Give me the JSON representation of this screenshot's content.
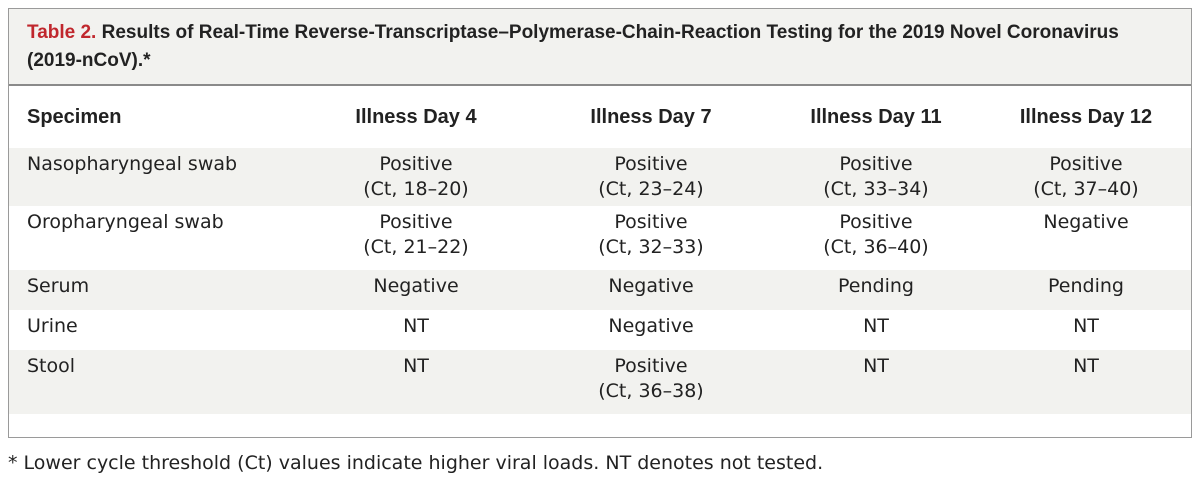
{
  "title": {
    "label": "Table 2.",
    "text": "Results of Real-Time Reverse-Transcriptase–Polymerase-Chain-Reaction Testing for the 2019 Novel Coronavirus (2019-nCoV).*"
  },
  "table": {
    "header": [
      "Specimen",
      "Illness Day 4",
      "Illness Day 7",
      "Illness Day 11",
      "Illness Day 12"
    ],
    "rows": [
      [
        "Nasopharyngeal swab",
        [
          "Positive",
          "(Ct, 18–20)"
        ],
        [
          "Positive",
          "(Ct, 23–24)"
        ],
        [
          "Positive",
          "(Ct, 33–34)"
        ],
        [
          "Positive",
          "(Ct, 37–40)"
        ]
      ],
      [
        "Oropharyngeal swab",
        [
          "Positive",
          "(Ct, 21–22)"
        ],
        [
          "Positive",
          "(Ct, 32–33)"
        ],
        [
          "Positive",
          "(Ct, 36–40)"
        ],
        [
          "Negative"
        ]
      ],
      [
        "Serum",
        [
          "Negative"
        ],
        [
          "Negative"
        ],
        [
          "Pending"
        ],
        [
          "Pending"
        ]
      ],
      [
        "Urine",
        [
          "NT"
        ],
        [
          "Negative"
        ],
        [
          "NT"
        ],
        [
          "NT"
        ]
      ],
      [
        "Stool",
        [
          "NT"
        ],
        [
          "Positive",
          "(Ct, 36–38)"
        ],
        [
          "NT"
        ],
        [
          "NT"
        ]
      ]
    ]
  },
  "footnote": "* Lower cycle threshold (Ct) values indicate higher viral loads. NT denotes not tested."
}
